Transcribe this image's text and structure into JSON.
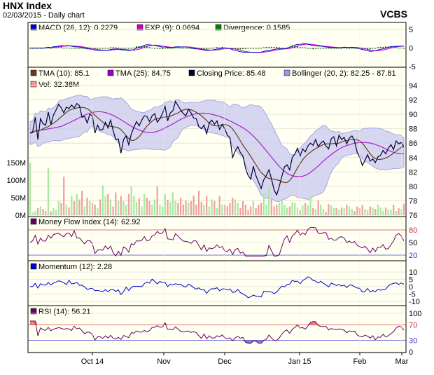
{
  "header": {
    "title": "HNX Index",
    "subtitle": "02/03/2015 - Daily chart",
    "brand": "VCBS"
  },
  "chart_data": [
    {
      "type": "line",
      "panel": "MACD",
      "legend": [
        {
          "label": "MACD (26, 12): 0.2279",
          "color": "#0000cc"
        },
        {
          "label": "EXP (9): 0.0694",
          "color": "#cc00cc"
        },
        {
          "label": "Divergence: 0.1585",
          "color": "#008000"
        }
      ],
      "yticks": [
        "5",
        "0",
        "-5"
      ],
      "ylim": [
        -5,
        5
      ]
    },
    {
      "type": "line",
      "panel": "Price",
      "legend": [
        {
          "label": "TMA (10): 85.1",
          "color": "#6b3a1e"
        },
        {
          "label": "TMA (25): 84.75",
          "color": "#9900cc"
        },
        {
          "label": "Closing Price: 85.48",
          "color": "#000033"
        },
        {
          "label": "Bollinger (20, 2): 82.25 - 87.81",
          "color": "#9999ee"
        },
        {
          "label": "Vol: 32.38M",
          "color": "#ee9999"
        }
      ],
      "yticks": [
        "94",
        "92",
        "90",
        "88",
        "86",
        "84",
        "82",
        "80",
        "78",
        "76"
      ],
      "ylim": [
        76,
        94
      ],
      "volume_ticks": [
        "150M",
        "100M",
        "50M",
        "0M"
      ],
      "volume_lim": [
        0,
        180
      ],
      "close": [
        87.4,
        87.6,
        89.6,
        86.5,
        89.4,
        88.7,
        88.5,
        90.3,
        88.6,
        89.9,
        90.6,
        91.4,
        90.9,
        90.2,
        91.0,
        90.8,
        91.3,
        90.9,
        91.5,
        91.2,
        89.6,
        89.7,
        88.8,
        90.0,
        89.8,
        87.4,
        88.5,
        87.8,
        87.9,
        88.9,
        88.1,
        89.2,
        87.7,
        86.5,
        86.6,
        84.6,
        86.5,
        87.0,
        85.8,
        87.3,
        88.2,
        89.0,
        88.4,
        89.2,
        89.8,
        89.7,
        89.0,
        89.8,
        90.1,
        88.9,
        89.4,
        90.1,
        91.1,
        89.1,
        90.2,
        90.5,
        91.8,
        91.2,
        90.6,
        90.1,
        89.8,
        90.7,
        90.2,
        89.5,
        89.4,
        88.3,
        88.0,
        88.5,
        87.3,
        88.8,
        89.2,
        88.6,
        89.1,
        87.9,
        88.6,
        88.0,
        87.1,
        86.8,
        84.0,
        84.9,
        85.5,
        84.7,
        84.2,
        82.5,
        81.5,
        81.0,
        82.8,
        81.5,
        80.6,
        79.7,
        80.9,
        81.5,
        82.3,
        81.0,
        79.5,
        78.8,
        80.0,
        81.4,
        82.7,
        83.0,
        82.3,
        84.0,
        84.5,
        85.3,
        84.2,
        85.2,
        84.8,
        85.6,
        86.0,
        85.7,
        86.5,
        85.5,
        86.0,
        86.3,
        85.6,
        85.2,
        86.6,
        86.9,
        85.6,
        87.1,
        86.5,
        86.8,
        85.9,
        86.7,
        87.0,
        86.3,
        84.7,
        84.0,
        82.9,
        83.6,
        84.4,
        83.5,
        83.8,
        83.3,
        84.1,
        84.3,
        85.0,
        84.5,
        85.3,
        85.8,
        85.1,
        86.3,
        85.9,
        86.1,
        85.48
      ],
      "volume": [
        150,
        8,
        12,
        20,
        25,
        18,
        12,
        135,
        11,
        20,
        15,
        40,
        35,
        110,
        30,
        22,
        55,
        40,
        60,
        45,
        70,
        25,
        50,
        40,
        35,
        30,
        20,
        45,
        85,
        55,
        60,
        45,
        25,
        65,
        42,
        55,
        40,
        30,
        60,
        82,
        55,
        38,
        48,
        25,
        60,
        50,
        40,
        30,
        45,
        82,
        30,
        25,
        60,
        44,
        38,
        65,
        40,
        35,
        50,
        30,
        42,
        36,
        40,
        56,
        30,
        70,
        38,
        30,
        55,
        25,
        45,
        40,
        20,
        55,
        30,
        30,
        25,
        35,
        50,
        45,
        35,
        20,
        40,
        30,
        15,
        25,
        40,
        20,
        30,
        35,
        60,
        30,
        80,
        48,
        25,
        30,
        35,
        45,
        30,
        20,
        25,
        38,
        35,
        22,
        15,
        28,
        35,
        30,
        55,
        20,
        16,
        42,
        30,
        18,
        10,
        32,
        28,
        20,
        20,
        15,
        22,
        20,
        30,
        25,
        18,
        12,
        25,
        20,
        30,
        18,
        15,
        25,
        22,
        18,
        30,
        22,
        12,
        22,
        18,
        15,
        30,
        12,
        20,
        18,
        32
      ],
      "xticks": [
        "Oct 14",
        "Nov",
        "Dec",
        "Jan 15",
        "Feb",
        "Mar"
      ]
    },
    {
      "type": "line",
      "panel": "Money Flow Index",
      "legend": [
        {
          "label": "Money Flow Index (14): 62.92",
          "color": "#660066"
        }
      ],
      "yticks": [
        "80",
        "50",
        "20"
      ],
      "ylim": [
        10,
        90
      ]
    },
    {
      "type": "line",
      "panel": "Momentum",
      "legend": [
        {
          "label": "Momentum (12): 2.28",
          "color": "#0000cc"
        }
      ],
      "yticks": [
        "10",
        "5",
        "0",
        "-5",
        "-10"
      ],
      "ylim": [
        -12,
        12
      ]
    },
    {
      "type": "line",
      "panel": "RSI",
      "legend": [
        {
          "label": "RSI (14): 56.21",
          "color": "#660066"
        }
      ],
      "yticks": [
        "100",
        "70",
        "30",
        "0"
      ],
      "ylim": [
        0,
        100
      ],
      "xticks": [
        "Oct 14",
        "Nov",
        "Dec",
        "Jan 15",
        "Feb",
        "Mar"
      ]
    }
  ]
}
